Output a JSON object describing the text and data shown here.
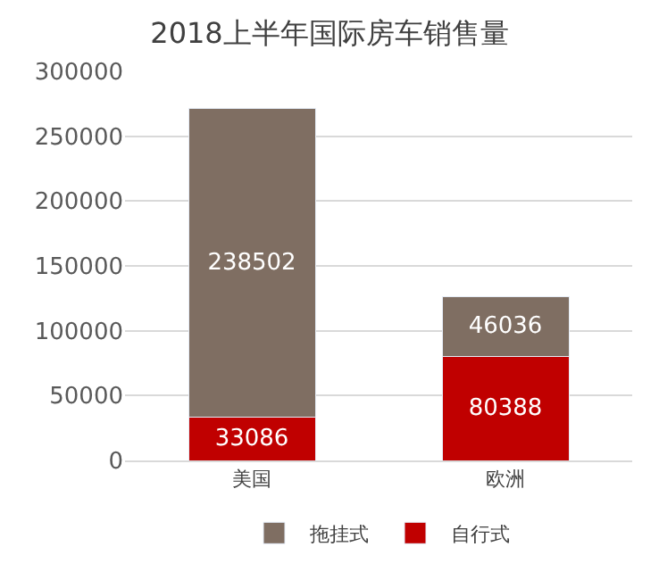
{
  "chart_data": {
    "type": "bar",
    "title": "2018上半年国际房车销售量",
    "categories": [
      "美国",
      "欧洲"
    ],
    "series": [
      {
        "name": "自行式",
        "color": "#c00000",
        "values": [
          33086,
          80388
        ]
      },
      {
        "name": "拖挂式",
        "color": "#7f6e62",
        "values": [
          238502,
          46036
        ]
      }
    ],
    "stacked": true,
    "data_labels": true,
    "ylim": [
      0,
      300000
    ],
    "yticks": [
      0,
      50000,
      100000,
      150000,
      200000,
      250000,
      300000
    ],
    "grid": "y",
    "legend": "bottom"
  }
}
